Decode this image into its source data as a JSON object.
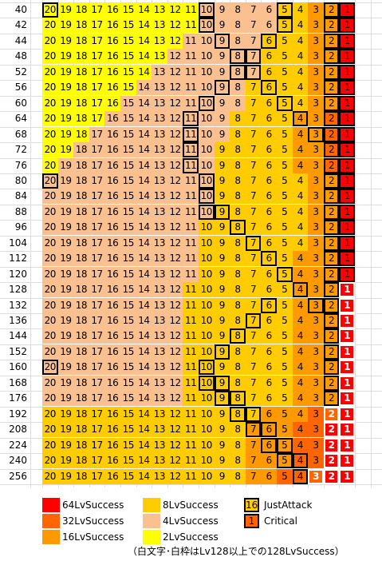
{
  "levels": [
    "40",
    "42",
    "44",
    "48",
    "52",
    "56",
    "60",
    "64",
    "68",
    "72",
    "76",
    "80",
    "84",
    "88",
    "96",
    "104",
    "112",
    "120",
    "128",
    "132",
    "136",
    "144",
    "152",
    "160",
    "168",
    "176",
    "192",
    "208",
    "224",
    "240",
    "256"
  ],
  "columns": [
    "20",
    "19",
    "18",
    "17",
    "16",
    "15",
    "14",
    "13",
    "12",
    "11",
    "10",
    "9",
    "8",
    "7",
    "6",
    "5",
    "4",
    "3",
    "2",
    "1"
  ],
  "colors": {
    "lv64": "#ff0000",
    "lv32": "#ff6600",
    "lv16": "#ff9900",
    "lv8": "#ffcc00",
    "lv4": "#fac090",
    "lv2": "#ffff00",
    "white": "#ffffff"
  },
  "legend": {
    "lv64": "64LvSuccess",
    "lv32": "32LvSuccess",
    "lv16": "16LvSuccess",
    "lv8": "8LvSuccess",
    "lv4": "4LvSuccess",
    "lv2": "2LvSuccess",
    "just_attack_sample": "16",
    "just_attack": "JustAttack",
    "critical_sample": "1",
    "critical": "Critical"
  },
  "note": "（白文字･白枠はLv128以上での128LvSuccess）"
}
